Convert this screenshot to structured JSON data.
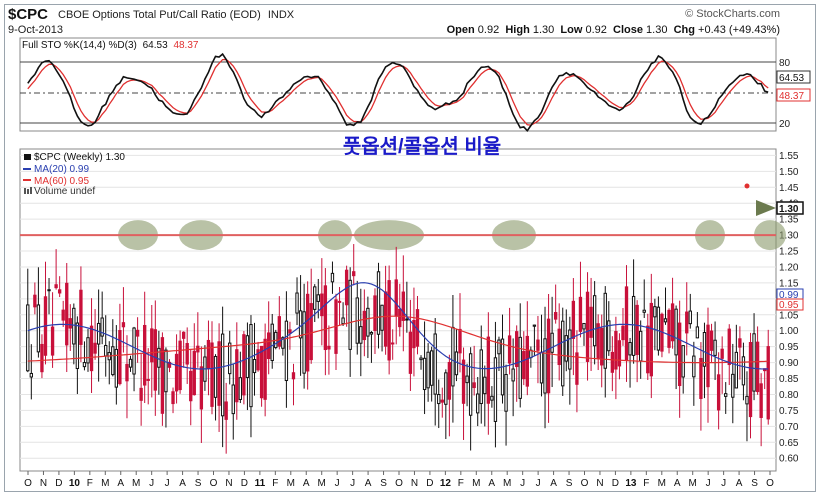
{
  "header": {
    "symbol": "$CPC",
    "name": "CBOE Options Total Put/Call Ratio (EOD)",
    "exchange": "INDX",
    "date": "9-Oct-2013",
    "watermark": "© StockCharts.com",
    "ohlc": {
      "open_label": "Open",
      "open": "0.92",
      "high_label": "High",
      "high": "1.30",
      "low_label": "Low",
      "low": "0.92",
      "close_label": "Close",
      "close": "1.30",
      "chg_label": "Chg",
      "chg": "+0.43 (+49.43%)"
    }
  },
  "sto_panel": {
    "legend_prefix": "Full STO %K(14,4) %D(3)",
    "k_value": "64.53",
    "d_value": "48.37",
    "y_ticks": [
      "80",
      "20"
    ],
    "badge_k": "64.53",
    "badge_d": "48.37",
    "k_color": "#111111",
    "d_color": "#e03030"
  },
  "price_panel": {
    "legend": [
      {
        "text": "$CPC (Weekly) 1.30",
        "color": "#111111",
        "marker": "bar"
      },
      {
        "text": "MA(20) 0.99",
        "color": "#2a3fb0",
        "marker": "line"
      },
      {
        "text": "MA(60) 0.95",
        "color": "#e03030",
        "marker": "line"
      },
      {
        "text": "Volume undef",
        "color": "#555555",
        "marker": "vol"
      }
    ],
    "korean_title": "풋옵션/콜옵션 비율",
    "title_color": "#1a1ac8",
    "y_ticks": [
      "1.55",
      "1.50",
      "1.45",
      "1.40",
      "1.35",
      "1.30",
      "1.25",
      "1.20",
      "1.15",
      "1.10",
      "1.05",
      "1.00",
      "0.95",
      "0.90",
      "0.85",
      "0.80",
      "0.75",
      "0.70",
      "0.65",
      "0.60"
    ],
    "badges": {
      "close": "1.30",
      "ma20": "0.99",
      "ma60": "0.95"
    },
    "resistance_level": 1.3,
    "resistance_color": "#e06060",
    "highlight_color": "#8b9a6a"
  },
  "x_axis": {
    "labels": [
      "O",
      "N",
      "D",
      "10",
      "F",
      "M",
      "A",
      "M",
      "J",
      "J",
      "A",
      "S",
      "O",
      "N",
      "D",
      "11",
      "F",
      "M",
      "A",
      "M",
      "J",
      "J",
      "A",
      "S",
      "O",
      "N",
      "D",
      "12",
      "F",
      "M",
      "A",
      "M",
      "J",
      "J",
      "A",
      "S",
      "O",
      "N",
      "D",
      "13",
      "F",
      "M",
      "A",
      "M",
      "J",
      "J",
      "A",
      "S",
      "O"
    ],
    "year_labels": [
      "10",
      "11",
      "12",
      "13"
    ]
  },
  "chart_data": {
    "type": "candlestick",
    "frequency": "weekly",
    "x_range": [
      "Oct 2009",
      "Oct 2013"
    ],
    "y_range": [
      0.56,
      1.57
    ],
    "last_close": 1.3,
    "ma20_last": 0.99,
    "ma60_last": 0.95,
    "stochastic_last": {
      "k": 64.53,
      "d": 48.37
    },
    "stochastic_levels": [
      80,
      50,
      20
    ],
    "resistance_line": 1.3,
    "highlighted_touches_at_1_30": [
      "May 2010",
      "Sep 2010",
      "Jun 2011",
      "Sep-Oct 2011",
      "May 2012",
      "Jul 2013",
      "Oct 2013"
    ]
  }
}
